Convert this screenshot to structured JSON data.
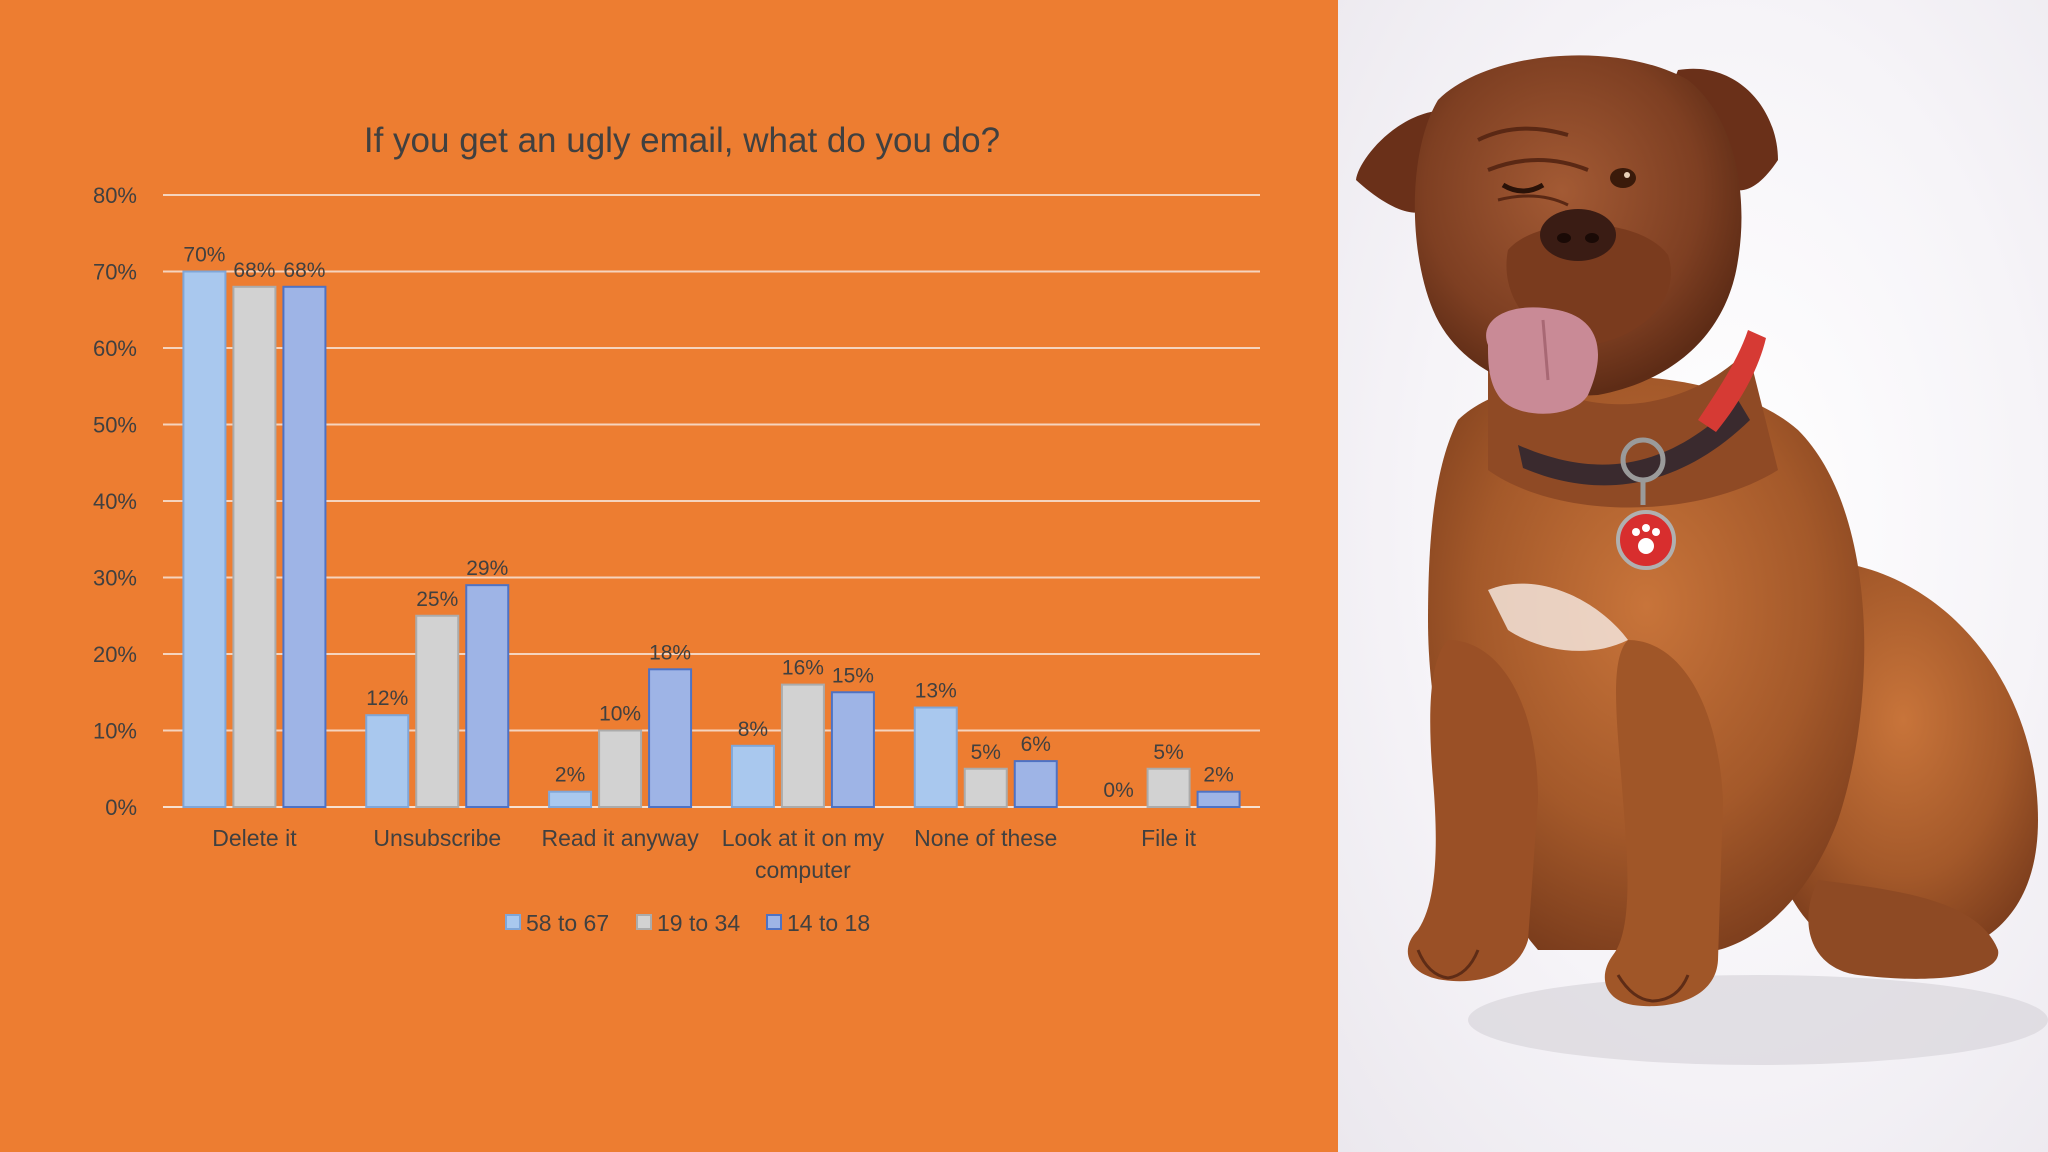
{
  "slide": {
    "background_color": "#ED7D31",
    "photo_subject_icon": "dog-photo-icon"
  },
  "chart_data": {
    "type": "bar",
    "title": "If you get an ugly email,  what do you do?",
    "categories": [
      "Delete it",
      "Unsubscribe",
      "Read it anyway",
      "Look at it on my computer",
      "None of these",
      "File it"
    ],
    "category_label_lines": [
      [
        "Delete it"
      ],
      [
        "Unsubscribe"
      ],
      [
        "Read it anyway"
      ],
      [
        "Look at it on my",
        "computer"
      ],
      [
        "None of these"
      ],
      [
        "File it"
      ]
    ],
    "series": [
      {
        "name": "58 to 67",
        "values": [
          70,
          12,
          2,
          8,
          13,
          0
        ],
        "labels": [
          "70%",
          "12%",
          "2%",
          "8%",
          "13%",
          "0%"
        ],
        "color": "#A9C8EE",
        "stroke": "#7FA6D8"
      },
      {
        "name": "19 to 34",
        "values": [
          68,
          25,
          10,
          16,
          5,
          5
        ],
        "labels": [
          "68%",
          "25%",
          "10%",
          "16%",
          "5%",
          "5%"
        ],
        "color": "#D2D2D2",
        "stroke": "#ABABAB"
      },
      {
        "name": "14 to 18",
        "values": [
          68,
          29,
          18,
          15,
          6,
          2
        ],
        "labels": [
          "68%",
          "29%",
          "18%",
          "15%",
          "6%",
          "2%"
        ],
        "color": "#9EB4E6",
        "stroke": "#4E72C4"
      }
    ],
    "ylim": [
      0,
      80
    ],
    "yticks": [
      0,
      10,
      20,
      30,
      40,
      50,
      60,
      70,
      80
    ],
    "ytick_labels": [
      "0%",
      "10%",
      "20%",
      "30%",
      "40%",
      "50%",
      "60%",
      "70%",
      "80%"
    ],
    "grid": true,
    "legend_position": "bottom",
    "text_color": "#404040",
    "grid_color": "#F5D4BE"
  }
}
